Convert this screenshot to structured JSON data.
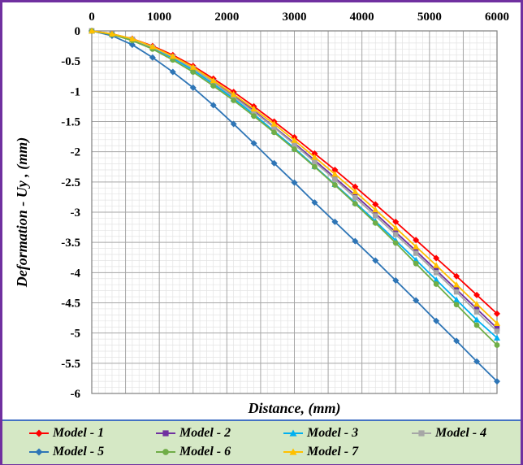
{
  "chart_data": {
    "type": "line",
    "title": "",
    "xlabel": "Distance, (mm)",
    "ylabel": "Deformation - Uy , (mm)",
    "xlim": [
      0,
      6000
    ],
    "ylim": [
      -6,
      0
    ],
    "x_ticks": [
      "0",
      "1000",
      "2000",
      "3000",
      "4000",
      "5000",
      "6000"
    ],
    "y_ticks": [
      "0",
      "-0.5",
      "-1",
      "-1.5",
      "-2",
      "-2.5",
      "-3",
      "-3.5",
      "-4",
      "-4.5",
      "-5",
      "-5.5",
      "-6"
    ],
    "grid": true,
    "legend_position": "bottom",
    "x": [
      0,
      300,
      600,
      900,
      1200,
      1500,
      1800,
      2100,
      2400,
      2700,
      3000,
      3300,
      3600,
      3900,
      4200,
      4500,
      4800,
      5100,
      5400,
      5700,
      6000
    ],
    "series": [
      {
        "name": "Model - 1",
        "color": "#ff0000",
        "marker": "diamond",
        "values": [
          0,
          -0.05,
          -0.13,
          -0.25,
          -0.4,
          -0.58,
          -0.79,
          -1.01,
          -1.25,
          -1.5,
          -1.76,
          -2.03,
          -2.3,
          -2.58,
          -2.87,
          -3.16,
          -3.46,
          -3.76,
          -4.06,
          -4.37,
          -4.68
        ]
      },
      {
        "name": "Model - 2",
        "color": "#7030a0",
        "marker": "square",
        "values": [
          0,
          -0.05,
          -0.14,
          -0.27,
          -0.43,
          -0.62,
          -0.84,
          -1.07,
          -1.32,
          -1.59,
          -1.86,
          -2.14,
          -2.43,
          -2.72,
          -3.02,
          -3.33,
          -3.64,
          -3.96,
          -4.28,
          -4.6,
          -4.92
        ]
      },
      {
        "name": "Model - 3",
        "color": "#00b0f0",
        "marker": "triangle",
        "values": [
          0,
          -0.06,
          -0.15,
          -0.28,
          -0.45,
          -0.65,
          -0.88,
          -1.12,
          -1.38,
          -1.66,
          -1.94,
          -2.24,
          -2.54,
          -2.84,
          -3.15,
          -3.47,
          -3.79,
          -4.12,
          -4.45,
          -4.78,
          -5.08
        ]
      },
      {
        "name": "Model - 4",
        "color": "#a6a6a6",
        "marker": "square",
        "values": [
          0,
          -0.05,
          -0.14,
          -0.27,
          -0.43,
          -0.62,
          -0.85,
          -1.09,
          -1.34,
          -1.6,
          -1.88,
          -2.17,
          -2.46,
          -2.76,
          -3.06,
          -3.37,
          -3.68,
          -4.0,
          -4.32,
          -4.65,
          -4.97
        ]
      },
      {
        "name": "Model - 5",
        "color": "#2e75b6",
        "marker": "diamond",
        "values": [
          0,
          -0.08,
          -0.23,
          -0.44,
          -0.68,
          -0.94,
          -1.23,
          -1.54,
          -1.86,
          -2.19,
          -2.51,
          -2.84,
          -3.16,
          -3.48,
          -3.8,
          -4.13,
          -4.46,
          -4.8,
          -5.13,
          -5.47,
          -5.8
        ]
      },
      {
        "name": "Model - 6",
        "color": "#70ad47",
        "marker": "circle",
        "values": [
          0,
          -0.06,
          -0.16,
          -0.3,
          -0.48,
          -0.68,
          -0.91,
          -1.15,
          -1.41,
          -1.68,
          -1.96,
          -2.25,
          -2.55,
          -2.86,
          -3.18,
          -3.51,
          -3.85,
          -4.19,
          -4.53,
          -4.87,
          -5.2
        ]
      },
      {
        "name": "Model - 7",
        "color": "#ffc000",
        "marker": "triangle",
        "values": [
          0,
          -0.05,
          -0.13,
          -0.26,
          -0.42,
          -0.6,
          -0.82,
          -1.05,
          -1.29,
          -1.54,
          -1.81,
          -2.09,
          -2.37,
          -2.66,
          -2.96,
          -3.26,
          -3.57,
          -3.88,
          -4.2,
          -4.52,
          -4.84
        ]
      }
    ]
  }
}
